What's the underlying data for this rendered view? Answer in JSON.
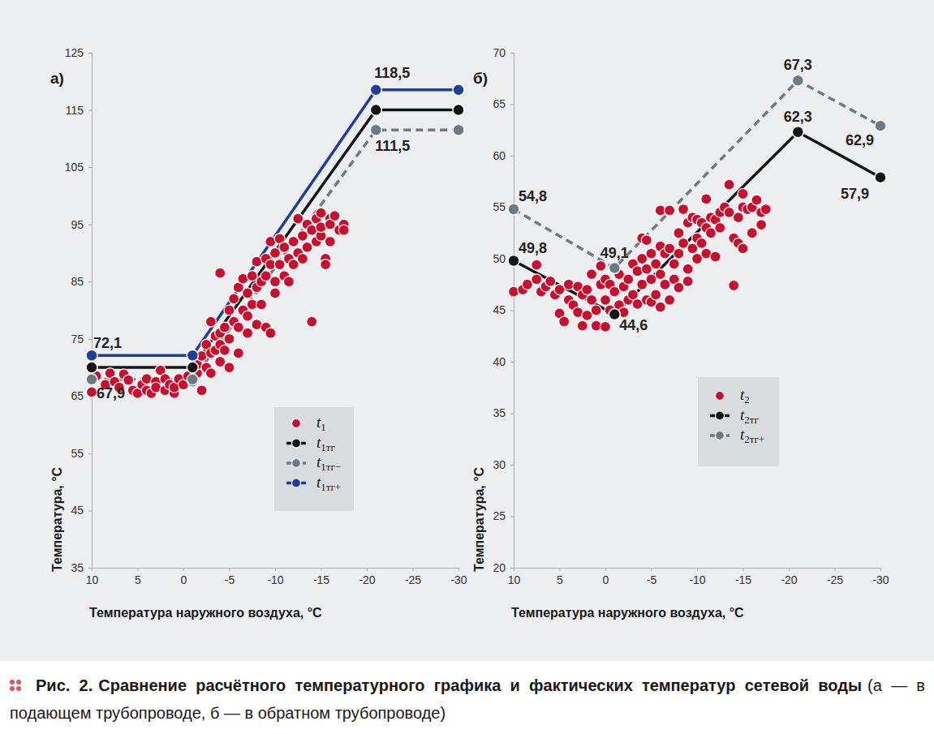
{
  "chart_data": [
    {
      "type": "line",
      "title": "а)",
      "x_label": "Температура наружного воздуха, °C",
      "y_label": "Температура, °C",
      "xlim": [
        10,
        -30
      ],
      "xticks": [
        10,
        5,
        0,
        -5,
        -10,
        -15,
        -20,
        -25,
        -30
      ],
      "ylim": [
        35,
        125
      ],
      "yticks": [
        35,
        45,
        55,
        65,
        75,
        85,
        95,
        105,
        115,
        125
      ],
      "grid": false,
      "legend": "bottom",
      "series": [
        {
          "name": "t1",
          "type": "scatter",
          "color": "#c8102e",
          "marker": "circle",
          "x": [
            10,
            9.5,
            8.5,
            8,
            7.5,
            7,
            6.5,
            6,
            5.5,
            5,
            4.5,
            4,
            4,
            3.5,
            3,
            3,
            2.5,
            2,
            2,
            1.5,
            1,
            1,
            0.5,
            0,
            -0.5,
            -1,
            -1.5,
            -1.5,
            -2,
            -2,
            -2.5,
            -2.5,
            -3,
            -3,
            -3,
            -3.5,
            -3.5,
            -4,
            -4,
            -4,
            -4,
            -4.5,
            -4.5,
            -5,
            -5,
            -5,
            -5.5,
            -5.5,
            -6,
            -6,
            -6,
            -6.5,
            -6.5,
            -7,
            -7,
            -7,
            -7.5,
            -7.5,
            -8,
            -8,
            -8,
            -8.5,
            -8.5,
            -9,
            -9,
            -9,
            -9.5,
            -9.5,
            -9.5,
            -10,
            -10,
            -10,
            -10.5,
            -10.5,
            -11,
            -11,
            -11.5,
            -11.5,
            -12,
            -12,
            -12.5,
            -12.5,
            -13,
            -13,
            -13.5,
            -13.5,
            -14,
            -14,
            -14.5,
            -14.5,
            -15,
            -15,
            -15,
            -15.5,
            -15.5,
            -16,
            -16,
            -16,
            -16.5,
            -17,
            -17.5,
            -17.5
          ],
          "values": [
            65.7,
            68.5,
            67,
            69,
            67.5,
            66.5,
            68.8,
            67.8,
            66,
            65.5,
            67,
            68,
            66,
            65.5,
            67.5,
            66.5,
            69.5,
            66,
            68,
            67,
            65.5,
            66.5,
            68,
            67,
            68.5,
            67.5,
            69,
            70.5,
            72,
            66,
            74,
            70,
            78,
            72.5,
            69,
            75.5,
            73,
            86.5,
            74,
            71,
            76,
            77,
            73,
            80,
            75,
            70,
            78,
            82,
            84,
            77,
            72.5,
            80,
            85.5,
            79,
            83,
            76,
            81,
            86,
            88.5,
            84,
            77.5,
            85,
            81,
            89,
            86,
            77,
            92,
            88,
            76,
            90,
            85,
            83,
            92.5,
            88,
            91,
            86,
            89,
            85,
            92,
            88,
            96,
            90,
            93,
            89,
            95,
            91,
            94,
            78,
            96,
            92,
            97,
            93,
            94.5,
            89,
            88,
            96,
            92,
            95,
            96.5,
            94,
            95,
            94
          ]
        },
        {
          "name": "t1тг",
          "type": "line",
          "color": "#141414",
          "marker": "circle",
          "line_style": "solid",
          "x": [
            10,
            -1,
            -21,
            -30
          ],
          "values": [
            70,
            70,
            115,
            115
          ]
        },
        {
          "name": "t1тг−",
          "type": "line",
          "color": "#6c7a84",
          "marker": "circle",
          "line_style": "dashed",
          "x": [
            10,
            -1,
            -21,
            -30
          ],
          "values": [
            67.9,
            67.9,
            111.5,
            111.5
          ]
        },
        {
          "name": "t1тг+",
          "type": "line",
          "color": "#1f3d9c",
          "marker": "circle",
          "line_style": "solid",
          "x": [
            10,
            -1,
            -21,
            -30
          ],
          "values": [
            72.1,
            72.1,
            118.5,
            118.5
          ]
        }
      ],
      "annotations": [
        {
          "text": "72,1",
          "x": 10,
          "y": 72.1
        },
        {
          "text": "67,9",
          "x": 10,
          "y": 67.9
        },
        {
          "text": "118,5",
          "x": -21,
          "y": 118.5
        },
        {
          "text": "111,5",
          "x": -21,
          "y": 111.5
        }
      ]
    },
    {
      "type": "line",
      "title": "б)",
      "x_label": "Температура наружного воздуха, °C",
      "y_label": "Температура, °C",
      "xlim": [
        10,
        -30
      ],
      "xticks": [
        10,
        5,
        0,
        -5,
        -10,
        -15,
        -20,
        -25,
        -30
      ],
      "ylim": [
        20,
        70
      ],
      "yticks": [
        20,
        25,
        30,
        35,
        40,
        45,
        50,
        55,
        60,
        65,
        70
      ],
      "grid": false,
      "legend": "bottom",
      "series": [
        {
          "name": "t2",
          "type": "scatter",
          "color": "#c8102e",
          "marker": "circle",
          "x": [
            10,
            9,
            8.5,
            7.5,
            7.5,
            7,
            6.5,
            6,
            5.5,
            5,
            5,
            4.5,
            4,
            4,
            3.5,
            3,
            3,
            2.5,
            2.5,
            2,
            2,
            1.5,
            1.5,
            1,
            1,
            0.5,
            0.5,
            0,
            0,
            0,
            -0.5,
            -0.5,
            -1,
            -1.5,
            -1.5,
            -2,
            -2,
            -2.5,
            -2.5,
            -3,
            -3,
            -3.5,
            -3.5,
            -4,
            -4,
            -4,
            -4.5,
            -4.5,
            -4.5,
            -5,
            -5,
            -5,
            -5.5,
            -5.5,
            -6,
            -6,
            -6,
            -6,
            -6.5,
            -6.5,
            -7,
            -7,
            -7,
            -7.5,
            -7.5,
            -8,
            -8,
            -8,
            -8.5,
            -8.5,
            -9,
            -9,
            -9,
            -9.5,
            -9.5,
            -10,
            -10,
            -10,
            -10.5,
            -10.5,
            -11,
            -11,
            -11,
            -11.5,
            -11.5,
            -12,
            -12,
            -12.5,
            -12.5,
            -13,
            -13.5,
            -13.5,
            -14,
            -14,
            -14.5,
            -14.5,
            -15,
            -15,
            -15,
            -15.5,
            -16,
            -16,
            -16.5,
            -17,
            -17,
            -17.5
          ],
          "values": [
            46.8,
            47,
            47.5,
            49.4,
            48,
            46.8,
            47.3,
            47.8,
            46.5,
            44.7,
            47,
            43.9,
            46,
            47.5,
            45.5,
            47.3,
            44.8,
            46.5,
            43.5,
            47,
            44.5,
            48.5,
            46,
            45,
            43.5,
            47.5,
            49.3,
            48,
            46,
            43.4,
            47.5,
            45,
            46.8,
            48.5,
            45.5,
            47.3,
            44.8,
            48,
            46,
            49.5,
            46.5,
            48.8,
            45.6,
            52,
            50,
            47.5,
            51.8,
            49,
            46,
            50.5,
            48,
            45.8,
            49.5,
            46.5,
            54.7,
            51.2,
            48.5,
            45.3,
            50.5,
            47.5,
            54.7,
            51,
            46,
            49.5,
            48,
            52.5,
            50.5,
            47.2,
            54.8,
            51.5,
            53.5,
            49,
            47.8,
            54,
            51,
            53.8,
            52,
            50,
            53.5,
            51.5,
            55.8,
            53,
            50.5,
            54,
            52.5,
            53.8,
            50.2,
            54.5,
            53,
            55,
            57.2,
            54.5,
            52,
            47.4,
            54,
            51.5,
            56.3,
            55,
            51,
            54.8,
            55,
            52.5,
            55.7,
            54.5,
            53.3,
            54.8
          ]
        },
        {
          "name": "t2тг",
          "type": "line",
          "color": "#141414",
          "marker": "circle",
          "line_style": "solid",
          "x": [
            10,
            -1,
            -21,
            -30
          ],
          "values": [
            49.8,
            44.6,
            62.3,
            57.9
          ]
        },
        {
          "name": "t2тг+",
          "type": "line",
          "color": "#6c7a84",
          "marker": "circle",
          "line_style": "dashed",
          "x": [
            10,
            -1,
            -21,
            -30
          ],
          "values": [
            54.8,
            49.1,
            67.3,
            62.9
          ]
        }
      ],
      "annotations": [
        {
          "text": "54,8",
          "x": 10,
          "y": 54.8
        },
        {
          "text": "49,8",
          "x": 10,
          "y": 49.8
        },
        {
          "text": "49,1",
          "x": -1,
          "y": 49.1
        },
        {
          "text": "44,6",
          "x": -1,
          "y": 44.6
        },
        {
          "text": "67,3",
          "x": -21,
          "y": 67.3
        },
        {
          "text": "62,3",
          "x": -21,
          "y": 62.3
        },
        {
          "text": "62,9",
          "x": -30,
          "y": 62.9
        },
        {
          "text": "57,9",
          "x": -30,
          "y": 57.9
        }
      ]
    }
  ],
  "caption": {
    "label": "Рис. 2.",
    "text": "Сравнение расчётного температурного графика и фактических температур сетевой воды",
    "note": "(а — в подающем трубопроводе, б — в обратном трубопроводе)"
  }
}
